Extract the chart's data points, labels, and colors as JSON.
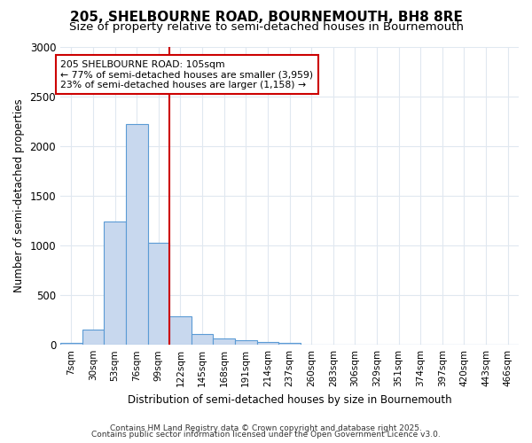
{
  "title": "205, SHELBOURNE ROAD, BOURNEMOUTH, BH8 8RE",
  "subtitle": "Size of property relative to semi-detached houses in Bournemouth",
  "xlabel": "Distribution of semi-detached houses by size in Bournemouth",
  "ylabel": "Number of semi-detached properties",
  "categories": [
    "7sqm",
    "30sqm",
    "53sqm",
    "76sqm",
    "99sqm",
    "122sqm",
    "145sqm",
    "168sqm",
    "191sqm",
    "214sqm",
    "237sqm",
    "260sqm",
    "283sqm",
    "306sqm",
    "329sqm",
    "351sqm",
    "374sqm",
    "397sqm",
    "420sqm",
    "443sqm",
    "466sqm"
  ],
  "values": [
    20,
    155,
    1240,
    2220,
    1030,
    290,
    105,
    65,
    50,
    30,
    20,
    0,
    0,
    0,
    0,
    0,
    0,
    0,
    0,
    0,
    0
  ],
  "bar_color": "#c8d8ee",
  "bar_edge_color": "#5b9bd5",
  "red_line_index": 4.5,
  "annotation_line1": "205 SHELBOURNE ROAD: 105sqm",
  "annotation_line2": "← 77% of semi-detached houses are smaller (3,959)",
  "annotation_line3": "23% of semi-detached houses are larger (1,158) →",
  "annotation_box_color": "#ffffff",
  "annotation_box_edge": "#cc0000",
  "red_line_color": "#cc0000",
  "ylim": [
    0,
    3000
  ],
  "yticks": [
    0,
    500,
    1000,
    1500,
    2000,
    2500,
    3000
  ],
  "footer_line1": "Contains HM Land Registry data © Crown copyright and database right 2025.",
  "footer_line2": "Contains public sector information licensed under the Open Government Licence v3.0.",
  "bg_color": "#ffffff",
  "plot_bg_color": "#ffffff",
  "grid_color": "#e0e8f0",
  "title_fontsize": 11,
  "subtitle_fontsize": 9.5
}
